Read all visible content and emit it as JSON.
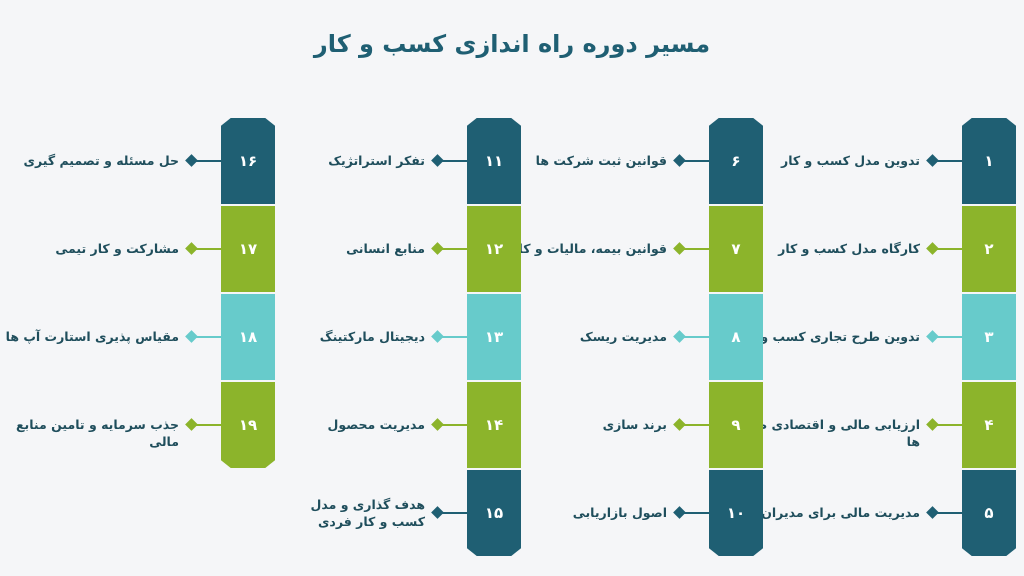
{
  "title": "مسیر دوره راه اندازی کسب و کار",
  "colors": {
    "dark_teal": "#1f5f73",
    "green": "#8cb42b",
    "light_teal": "#67cbcb"
  },
  "columns": [
    {
      "items": [
        {
          "number": "۱",
          "label": "تدوین مدل کسب و کار"
        },
        {
          "number": "۲",
          "label": "کارگاه مدل کسب و کار"
        },
        {
          "number": "۳",
          "label": "تدوین طرح تجاری کسب و کار"
        },
        {
          "number": "۴",
          "label": "ارزیابی مالی و اقتصادی طرح ها"
        },
        {
          "number": "۵",
          "label": "مدیریت مالی برای مدیران"
        }
      ]
    },
    {
      "items": [
        {
          "number": "۶",
          "label": "قوانین ثبت شرکت ها"
        },
        {
          "number": "۷",
          "label": "قوانین بیمه، مالیات و کار"
        },
        {
          "number": "۸",
          "label": "مدیریت ریسک"
        },
        {
          "number": "۹",
          "label": "برند سازی"
        },
        {
          "number": "۱۰",
          "label": "اصول بازاریابی"
        }
      ]
    },
    {
      "items": [
        {
          "number": "۱۱",
          "label": "تفکر استراتژیک"
        },
        {
          "number": "۱۲",
          "label": "منابع انسانی"
        },
        {
          "number": "۱۳",
          "label": "دیجیتال مارکتینگ"
        },
        {
          "number": "۱۴",
          "label": "مدیریت محصول"
        },
        {
          "number": "۱۵",
          "label": "هدف گذاری و مدل کسب و کار فردی"
        }
      ]
    },
    {
      "items": [
        {
          "number": "۱۶",
          "label": "حل مسئله و تصمیم گیری"
        },
        {
          "number": "۱۷",
          "label": "مشارکت و کار تیمی"
        },
        {
          "number": "۱۸",
          "label": "مقیاس پذیری استارت آپ ها"
        },
        {
          "number": "۱۹",
          "label": "جذب سرمایه و تامین منابع مالی"
        }
      ]
    }
  ]
}
